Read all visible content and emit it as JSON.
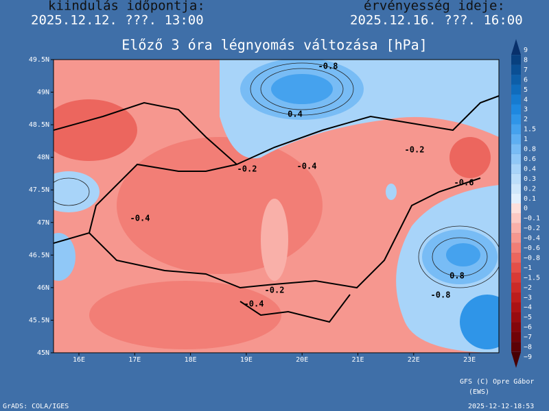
{
  "header": {
    "left_label": "kiindulás időpontja:",
    "left_time": "2025.12.12. ???. 13:00",
    "right_label": "érvényesség ideje:",
    "right_time": "2025.12.16. ???. 16:00"
  },
  "map": {
    "title": "Előző 3 óra légnyomás változása [hPa]",
    "lat_labels": [
      "49.5N",
      "49N",
      "48.5N",
      "48N",
      "47.5N",
      "47N",
      "46.5N",
      "46N",
      "45.5N",
      "45N"
    ],
    "lon_labels": [
      "16E",
      "17E",
      "18E",
      "19E",
      "20E",
      "21E",
      "22E",
      "23E"
    ],
    "contour_labels": [
      "-0.8",
      "0.4",
      "-0.2",
      "-0.4",
      "-0.2",
      "-0.6",
      "-0.4",
      "-0.2",
      "-0.4",
      "0.8",
      "-0.8"
    ]
  },
  "colorbar": {
    "levels": [
      {
        "label": "9",
        "color": "#08306b"
      },
      {
        "label": "8",
        "color": "#08407f"
      },
      {
        "label": "7",
        "color": "#0a4f94"
      },
      {
        "label": "6",
        "color": "#0d5ea8"
      },
      {
        "label": "5",
        "color": "#106cbc"
      },
      {
        "label": "4",
        "color": "#167bd0"
      },
      {
        "label": "3",
        "color": "#1e88e0"
      },
      {
        "label": "2",
        "color": "#2f95e8"
      },
      {
        "label": "1.5",
        "color": "#45a2ee"
      },
      {
        "label": "1",
        "color": "#5eaff2"
      },
      {
        "label": "0.8",
        "color": "#78bcf5"
      },
      {
        "label": "0.6",
        "color": "#90c8f7"
      },
      {
        "label": "0.4",
        "color": "#a8d4f9"
      },
      {
        "label": "0.3",
        "color": "#bcdefa"
      },
      {
        "label": "0.2",
        "color": "#cfe7fb"
      },
      {
        "label": "0.1",
        "color": "#e2f0fd"
      },
      {
        "label": "0",
        "color": "#fde0dc"
      },
      {
        "label": "−0.1",
        "color": "#fcc9c3"
      },
      {
        "label": "−0.2",
        "color": "#f9b0a9"
      },
      {
        "label": "−0.4",
        "color": "#f6978f"
      },
      {
        "label": "−0.6",
        "color": "#f27e76"
      },
      {
        "label": "−0.8",
        "color": "#ec665e"
      },
      {
        "label": "−1",
        "color": "#e44f48"
      },
      {
        "label": "−1.5",
        "color": "#d93a35"
      },
      {
        "label": "−2",
        "color": "#cc2a27"
      },
      {
        "label": "−3",
        "color": "#bd1d1c"
      },
      {
        "label": "−4",
        "color": "#ab1214"
      },
      {
        "label": "−5",
        "color": "#980b0f"
      },
      {
        "label": "−6",
        "color": "#84060b"
      },
      {
        "label": "−7",
        "color": "#700308"
      },
      {
        "label": "−8",
        "color": "#5c0106"
      },
      {
        "label": "−9",
        "color": "#480004"
      }
    ]
  },
  "footer": {
    "credit": "GFS (C) Opre Gábor",
    "credit_sub": "(EWS)",
    "grads": "GrADS: COLA/IGES",
    "stamp": "2025-12-12-18:53"
  }
}
